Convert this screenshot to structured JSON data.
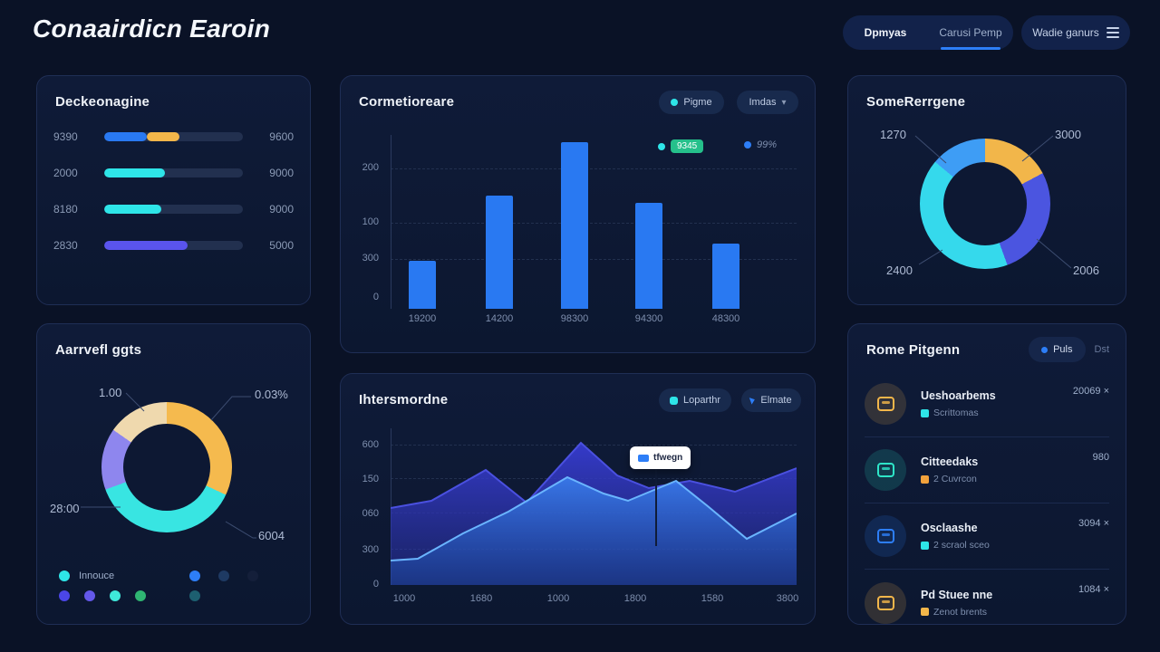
{
  "header": {
    "title": "Conaairdicn Earoin",
    "tabs": [
      {
        "label": "Dpmyas",
        "active": false
      },
      {
        "label": "Carusi Pemp",
        "active": true
      }
    ],
    "menu_button": "Wadie ganurs",
    "accent_color": "#2d7ef7"
  },
  "progress_card": {
    "title": "Deckeonagine",
    "rows": [
      {
        "left": "9390",
        "right": "9600",
        "segments": [
          {
            "color": "#2979f2",
            "pct": 31
          },
          {
            "color": "#f2b64a",
            "pct": 23
          }
        ]
      },
      {
        "left": "2000",
        "right": "9000",
        "segments": [
          {
            "color": "#2ee5e8",
            "pct": 44
          }
        ]
      },
      {
        "left": "8180",
        "right": "9000",
        "segments": [
          {
            "color": "#2ee5e8",
            "pct": 41
          }
        ]
      },
      {
        "left": "2830",
        "right": "5000",
        "segments": [
          {
            "color": "#5a54ee",
            "pct": 60
          }
        ]
      }
    ]
  },
  "donut_left_card": {
    "title": "Aarrvefl ggts",
    "chart_data": {
      "type": "pie",
      "labels": [
        "1.00",
        "0.03%",
        "28:00",
        "6004"
      ],
      "segments": [
        {
          "color": "#f5ba4e",
          "from": 0,
          "to": 115
        },
        {
          "color": "#38e5e2",
          "from": 115,
          "to": 250
        },
        {
          "color": "#8e86ee",
          "from": 250,
          "to": 305
        },
        {
          "color": "#efd9ae",
          "from": 305,
          "to": 360
        }
      ]
    },
    "legend": {
      "label": "Innouce",
      "row1_left": [
        "#2ee5e8"
      ],
      "row1_right": [
        "#2d7ef7",
        "#1e3a63",
        "#141f3a"
      ],
      "row2_left": [
        "#4b46e8",
        "#6458ea",
        "#3fe8da",
        "#2fb572"
      ],
      "row2_right": [
        "#1d5f70"
      ]
    }
  },
  "bar_card": {
    "title": "Cormetioreare",
    "button_primary": "Pigme",
    "button_dropdown": "Imdas",
    "legend_badge": "9345",
    "legend_label": "99%",
    "chart_data": {
      "type": "bar",
      "categories": [
        "19200",
        "14200",
        "98300",
        "94300",
        "48300"
      ],
      "values": [
        55,
        130,
        192,
        122,
        75
      ],
      "ymax": 200,
      "ytick_labels": [
        "200",
        "100",
        "300",
        "0"
      ],
      "bar_color": "#2979f2",
      "grid": true
    }
  },
  "area_card": {
    "title": "Ihtersmordne",
    "button_primary": "Loparthr",
    "button_secondary": "Elmate",
    "tooltip_label": "tfwegn",
    "chart_data": {
      "type": "area",
      "x_labels": [
        "1000",
        "1680",
        "1000",
        "1800",
        "1580",
        "3800"
      ],
      "ytick_labels": [
        "600",
        "150",
        "060",
        "300",
        "0"
      ],
      "series": [
        {
          "name": "indigo",
          "stroke": "#4a50e0",
          "fill_top": "rgba(55,60,210,0.95)",
          "fill_bottom": "rgba(40,48,160,0.45)",
          "points": [
            [
              0,
              88
            ],
            [
              45,
              80
            ],
            [
              105,
              46
            ],
            [
              150,
              82
            ],
            [
              210,
              16
            ],
            [
              250,
              52
            ],
            [
              285,
              66
            ],
            [
              330,
              58
            ],
            [
              380,
              70
            ],
            [
              448,
              44
            ]
          ]
        },
        {
          "name": "lightblue",
          "stroke": "#6ab5ff",
          "fill_top": "rgba(58,130,240,0.85)",
          "fill_bottom": "rgba(30,75,170,0.45)",
          "points": [
            [
              0,
              146
            ],
            [
              30,
              144
            ],
            [
              80,
              116
            ],
            [
              130,
              92
            ],
            [
              195,
              54
            ],
            [
              235,
              72
            ],
            [
              262,
              80
            ],
            [
              315,
              58
            ],
            [
              350,
              86
            ],
            [
              393,
              122
            ],
            [
              448,
              94
            ]
          ]
        }
      ]
    }
  },
  "donut_right_card": {
    "title": "SomeRerrgene",
    "chart_data": {
      "type": "pie",
      "labels": [
        "1270",
        "3000",
        "2400",
        "2006"
      ],
      "segments": [
        {
          "color": "#f2b64a",
          "from": 0,
          "to": 62
        },
        {
          "color": "#4b55e0",
          "from": 62,
          "to": 160
        },
        {
          "color": "#35d9ec",
          "from": 160,
          "to": 310
        },
        {
          "color": "#3e9df5",
          "from": 310,
          "to": 360
        }
      ]
    }
  },
  "list_card": {
    "title": "Rome Pitgenn",
    "pill_active": "Puls",
    "pill_inactive": "Dst",
    "items": [
      {
        "title": "Ueshoarbems",
        "subtitle": "Scrittomas",
        "value": "20069 ×",
        "icon_color": "#f2b64a",
        "sub_icon_color": "#2ee5e8"
      },
      {
        "title": "Citteedaks",
        "subtitle": "2 Cuvrcon",
        "value": "980",
        "icon_color": "#2ee5c8",
        "sub_icon_color": "#f2a23c"
      },
      {
        "title": "Osclaashe",
        "subtitle": "2 scraol sceo",
        "value": "3094 ×",
        "icon_color": "#2d7ef7",
        "sub_icon_color": "#2ee5e8"
      },
      {
        "title": "Pd Stuee nne",
        "subtitle": "Zenot brents",
        "value": "1084 ×",
        "icon_color": "#f2b64a",
        "sub_icon_color": "#f2b64a"
      }
    ]
  }
}
